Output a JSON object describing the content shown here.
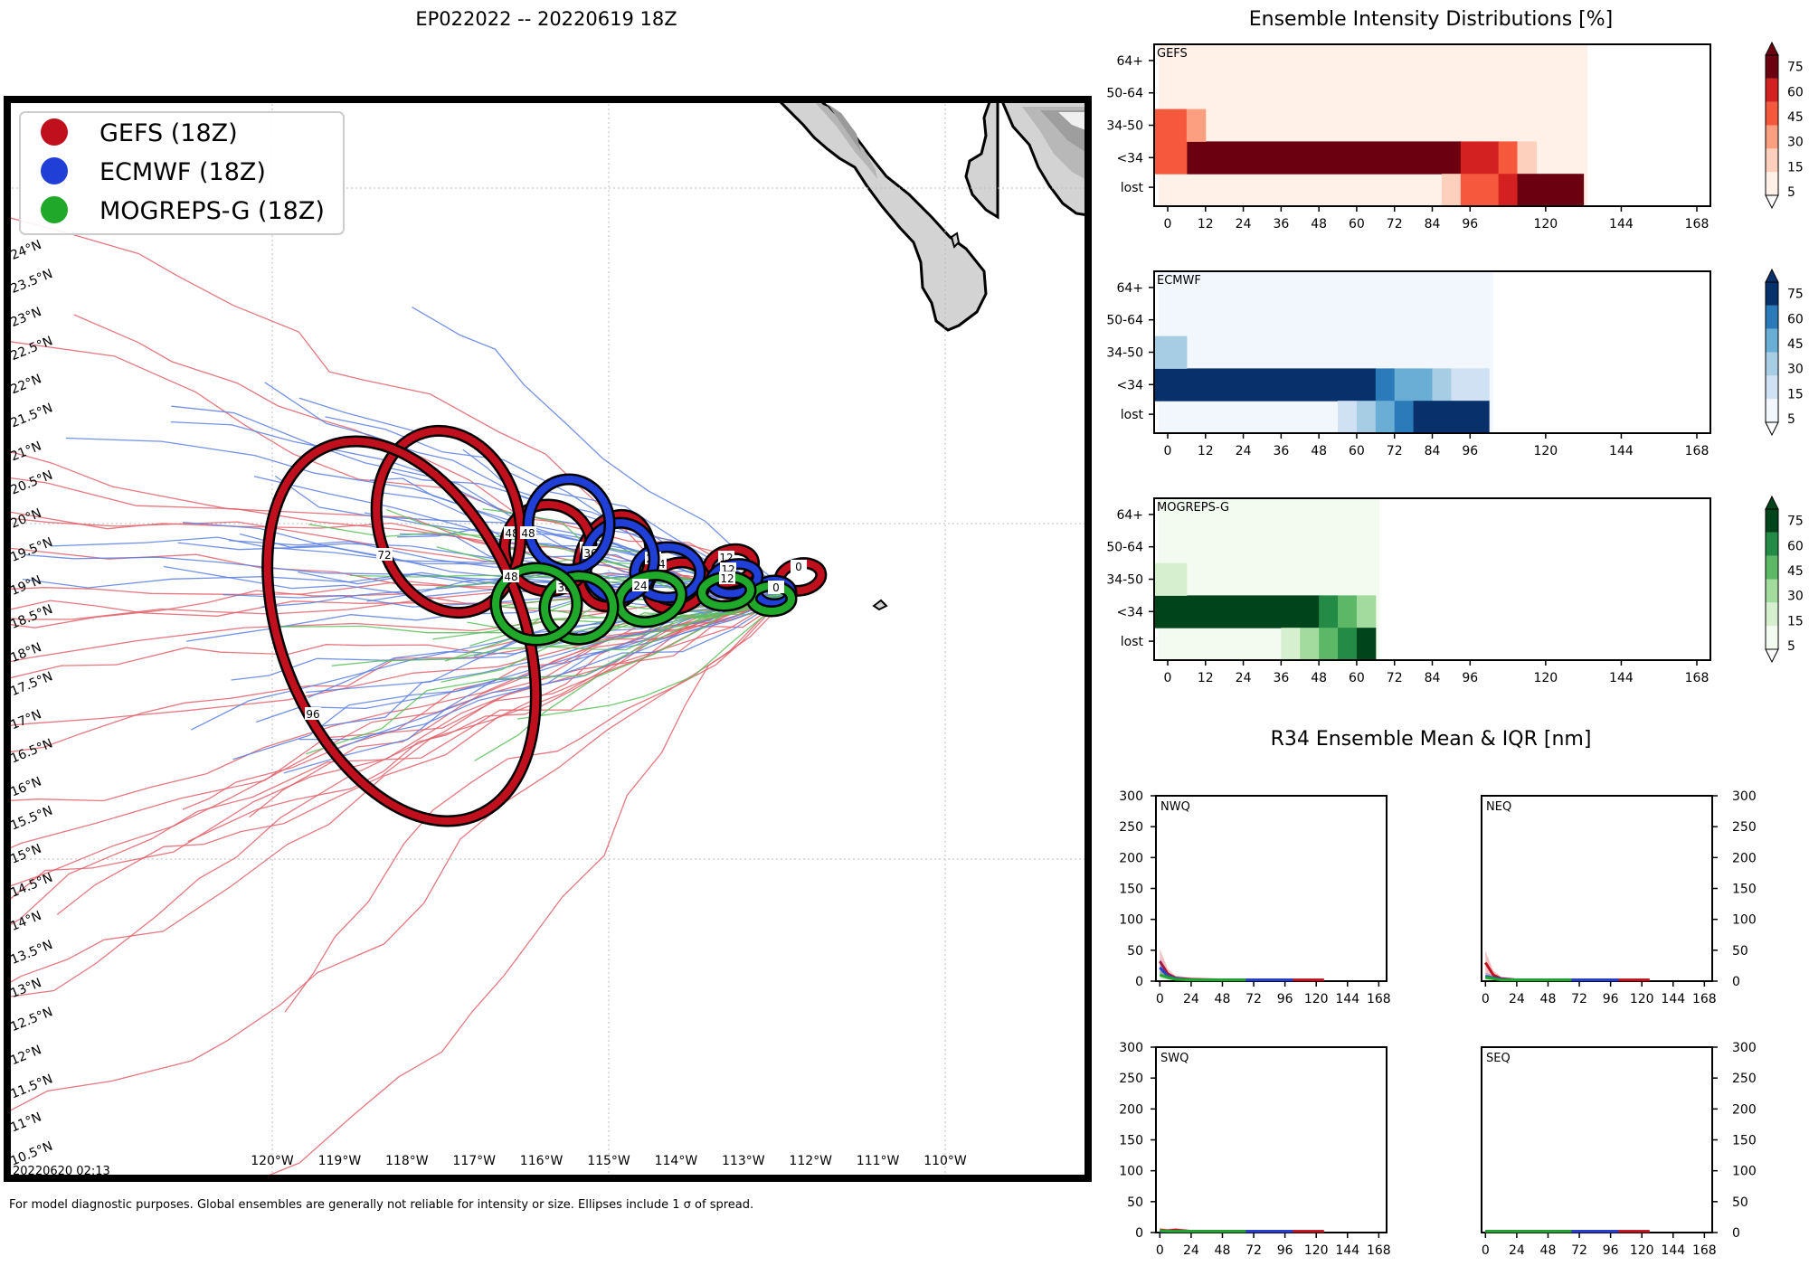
{
  "map": {
    "title": "EP022022 -- 20220619 18Z",
    "stamp": "20220620 02:13",
    "footnote": "For model diagnostic purposes. Global ensembles are generally not reliable for intensity or size. Ellipses include 1 σ of spread.",
    "lon_ticks": [
      "120°W",
      "119°W",
      "118°W",
      "117°W",
      "116°W",
      "115°W",
      "114°W",
      "113°W",
      "112°W",
      "111°W",
      "110°W"
    ],
    "lat_ticks": [
      "24°N",
      "23.5°N",
      "23°N",
      "22.5°N",
      "22°N",
      "21.5°N",
      "21°N",
      "20.5°N",
      "20°N",
      "19.5°N",
      "19°N",
      "18.5°N",
      "18°N",
      "17.5°N",
      "17°N",
      "16.5°N",
      "16°N",
      "15.5°N",
      "15°N",
      "14.5°N",
      "14°N",
      "13.5°N",
      "13°N",
      "12.5°N",
      "12°N",
      "11.5°N",
      "11°N",
      "10.5°N"
    ],
    "legend": [
      {
        "label": "GEFS (18Z)",
        "color": "#c0101d"
      },
      {
        "label": "ECMWF (18Z)",
        "color": "#1f3fd6"
      },
      {
        "label": "MOGREPS-G (18Z)",
        "color": "#1fa82a"
      }
    ],
    "colors": {
      "gefs": "#c0101d",
      "ecmwf": "#1f3fd6",
      "mogreps": "#1fa82a",
      "gefs_track": "#e0606a",
      "ecmwf_track": "#5a7fe0",
      "mogreps_track": "#5bbf5b",
      "land": "#d3d3d3"
    },
    "ellipse_labels": {
      "gefs": [
        "0",
        "12",
        "24",
        "36",
        "48",
        "72",
        "96"
      ],
      "ecmwf": [
        "0",
        "12",
        "24",
        "36",
        "48"
      ],
      "mogreps": [
        "0",
        "12",
        "24",
        "36",
        "48"
      ]
    }
  },
  "chart_data": [
    {
      "type": "heatmap",
      "title": "Ensemble Intensity Distributions [%]",
      "panel": "GEFS",
      "ylabels": [
        "64+",
        "50-64",
        "34-50",
        "<34",
        "lost"
      ],
      "x_ticks": [
        "0",
        "12",
        "24",
        "36",
        "48",
        "60",
        "72",
        "84",
        "96",
        "120",
        "144",
        "168"
      ],
      "colorbar_ticks": [
        "5",
        "15",
        "30",
        "45",
        "60",
        "75"
      ],
      "colors": [
        "#fff0e8",
        "#fdd0bd",
        "#fc9f80",
        "#f6583e",
        "#d32020",
        "#6b0010"
      ],
      "cells": [
        {
          "row": "<34",
          "x0": 6,
          "x1": 93,
          "level": 5
        },
        {
          "row": "<34",
          "x0": 0,
          "x1": 6,
          "level": 3
        },
        {
          "row": "<34",
          "x0": 93,
          "x1": 99,
          "level": 4
        },
        {
          "row": "<34",
          "x0": 99,
          "x1": 105,
          "level": 4
        },
        {
          "row": "<34",
          "x0": 105,
          "x1": 111,
          "level": 3
        },
        {
          "row": "<34",
          "x0": 111,
          "x1": 117,
          "level": 1
        },
        {
          "row": "34-50",
          "x0": 0,
          "x1": 6,
          "level": 3
        },
        {
          "row": "34-50",
          "x0": 6,
          "x1": 12,
          "level": 2
        },
        {
          "row": "lost",
          "x0": 87,
          "x1": 93,
          "level": 1
        },
        {
          "row": "lost",
          "x0": 93,
          "x1": 105,
          "level": 3
        },
        {
          "row": "lost",
          "x0": 105,
          "x1": 111,
          "level": 4
        },
        {
          "row": "lost",
          "x0": 111,
          "x1": 132,
          "level": 5
        }
      ],
      "data_extent_hours": 132
    },
    {
      "type": "heatmap",
      "panel": "ECMWF",
      "ylabels": [
        "64+",
        "50-64",
        "34-50",
        "<34",
        "lost"
      ],
      "x_ticks": [
        "0",
        "12",
        "24",
        "36",
        "48",
        "60",
        "72",
        "84",
        "96",
        "120",
        "144",
        "168"
      ],
      "colorbar_ticks": [
        "5",
        "15",
        "30",
        "45",
        "60",
        "75"
      ],
      "colors": [
        "#f2f7fd",
        "#cfe1f2",
        "#a6cde3",
        "#6aaed6",
        "#2b7bba",
        "#08306b"
      ],
      "cells": [
        {
          "row": "<34",
          "x0": 0,
          "x1": 66,
          "level": 5
        },
        {
          "row": "<34",
          "x0": 66,
          "x1": 72,
          "level": 4
        },
        {
          "row": "<34",
          "x0": 72,
          "x1": 84,
          "level": 3
        },
        {
          "row": "<34",
          "x0": 84,
          "x1": 90,
          "level": 2
        },
        {
          "row": "<34",
          "x0": 90,
          "x1": 102,
          "level": 1
        },
        {
          "row": "34-50",
          "x0": 0,
          "x1": 6,
          "level": 2
        },
        {
          "row": "lost",
          "x0": 54,
          "x1": 60,
          "level": 1
        },
        {
          "row": "lost",
          "x0": 60,
          "x1": 66,
          "level": 2
        },
        {
          "row": "lost",
          "x0": 66,
          "x1": 72,
          "level": 3
        },
        {
          "row": "lost",
          "x0": 72,
          "x1": 78,
          "level": 4
        },
        {
          "row": "lost",
          "x0": 78,
          "x1": 84,
          "level": 5
        },
        {
          "row": "lost",
          "x0": 84,
          "x1": 102,
          "level": 5
        }
      ],
      "data_extent_hours": 102
    },
    {
      "type": "heatmap",
      "panel": "MOGREPS-G",
      "ylabels": [
        "64+",
        "50-64",
        "34-50",
        "<34",
        "lost"
      ],
      "x_ticks": [
        "0",
        "12",
        "24",
        "36",
        "48",
        "60",
        "72",
        "84",
        "96",
        "120",
        "144",
        "168"
      ],
      "colorbar_ticks": [
        "5",
        "15",
        "30",
        "45",
        "60",
        "75"
      ],
      "colors": [
        "#f3faf0",
        "#d5efcf",
        "#a3da9d",
        "#5cb766",
        "#238b45",
        "#00441b"
      ],
      "cells": [
        {
          "row": "<34",
          "x0": 0,
          "x1": 48,
          "level": 5
        },
        {
          "row": "<34",
          "x0": 48,
          "x1": 54,
          "level": 4
        },
        {
          "row": "<34",
          "x0": 54,
          "x1": 60,
          "level": 3
        },
        {
          "row": "<34",
          "x0": 60,
          "x1": 66,
          "level": 2
        },
        {
          "row": "34-50",
          "x0": 0,
          "x1": 6,
          "level": 1
        },
        {
          "row": "lost",
          "x0": 36,
          "x1": 42,
          "level": 1
        },
        {
          "row": "lost",
          "x0": 42,
          "x1": 48,
          "level": 2
        },
        {
          "row": "lost",
          "x0": 48,
          "x1": 54,
          "level": 3
        },
        {
          "row": "lost",
          "x0": 54,
          "x1": 60,
          "level": 4
        },
        {
          "row": "lost",
          "x0": 60,
          "x1": 66,
          "level": 5
        }
      ],
      "data_extent_hours": 66
    },
    {
      "type": "line",
      "title": "R34 Ensemble Mean & IQR [nm]",
      "panels": [
        "NWQ",
        "NEQ",
        "SWQ",
        "SEQ"
      ],
      "x_ticks": [
        "0",
        "24",
        "48",
        "72",
        "96",
        "120",
        "144",
        "168"
      ],
      "y_ticks": [
        "0",
        "50",
        "100",
        "150",
        "200",
        "250",
        "300"
      ],
      "ylim": [
        0,
        300
      ],
      "xlim": [
        -3,
        174
      ],
      "series": {
        "NWQ": [
          {
            "name": "GEFS",
            "x": [
              0,
              6,
              12,
              24,
              48,
              72,
              96,
              120,
              126
            ],
            "y": [
              32,
              12,
              5,
              3,
              2,
              2,
              2,
              2,
              2
            ]
          },
          {
            "name": "ECMWF",
            "x": [
              0,
              6,
              12,
              24,
              48,
              72,
              96,
              102
            ],
            "y": [
              22,
              8,
              4,
              2,
              2,
              2,
              2,
              2
            ]
          },
          {
            "name": "MOGREPS-G",
            "x": [
              0,
              6,
              12,
              24,
              48,
              66
            ],
            "y": [
              10,
              6,
              3,
              2,
              2,
              2
            ]
          }
        ],
        "NEQ": [
          {
            "name": "GEFS",
            "x": [
              0,
              6,
              12,
              24,
              48,
              72,
              96,
              120,
              126
            ],
            "y": [
              30,
              10,
              4,
              2,
              2,
              2,
              2,
              2,
              2
            ]
          },
          {
            "name": "ECMWF",
            "x": [
              0,
              6,
              12,
              24,
              48,
              72,
              96,
              102
            ],
            "y": [
              8,
              5,
              3,
              2,
              2,
              2,
              2,
              2
            ]
          },
          {
            "name": "MOGREPS-G",
            "x": [
              0,
              6,
              12,
              24,
              48,
              66
            ],
            "y": [
              6,
              4,
              2,
              2,
              2,
              2
            ]
          }
        ],
        "SWQ": [
          {
            "name": "GEFS",
            "x": [
              0,
              6,
              12,
              24,
              48,
              72,
              96,
              120,
              126
            ],
            "y": [
              4,
              3,
              4,
              2,
              2,
              2,
              2,
              2,
              2
            ]
          },
          {
            "name": "ECMWF",
            "x": [
              0,
              6,
              12,
              24,
              48,
              72,
              96,
              102
            ],
            "y": [
              2,
              2,
              2,
              2,
              2,
              2,
              2,
              2
            ]
          },
          {
            "name": "MOGREPS-G",
            "x": [
              0,
              6,
              12,
              24,
              48,
              66
            ],
            "y": [
              3,
              2,
              2,
              2,
              2,
              2
            ]
          }
        ],
        "SEQ": [
          {
            "name": "GEFS",
            "x": [
              0,
              24,
              48,
              72,
              96,
              120,
              126
            ],
            "y": [
              2,
              2,
              2,
              2,
              2,
              2,
              2
            ]
          },
          {
            "name": "ECMWF",
            "x": [
              0,
              24,
              48,
              72,
              96,
              102
            ],
            "y": [
              2,
              2,
              2,
              2,
              2,
              2
            ]
          },
          {
            "name": "MOGREPS-G",
            "x": [
              0,
              24,
              48,
              66
            ],
            "y": [
              2,
              2,
              2,
              2
            ]
          }
        ]
      }
    }
  ]
}
